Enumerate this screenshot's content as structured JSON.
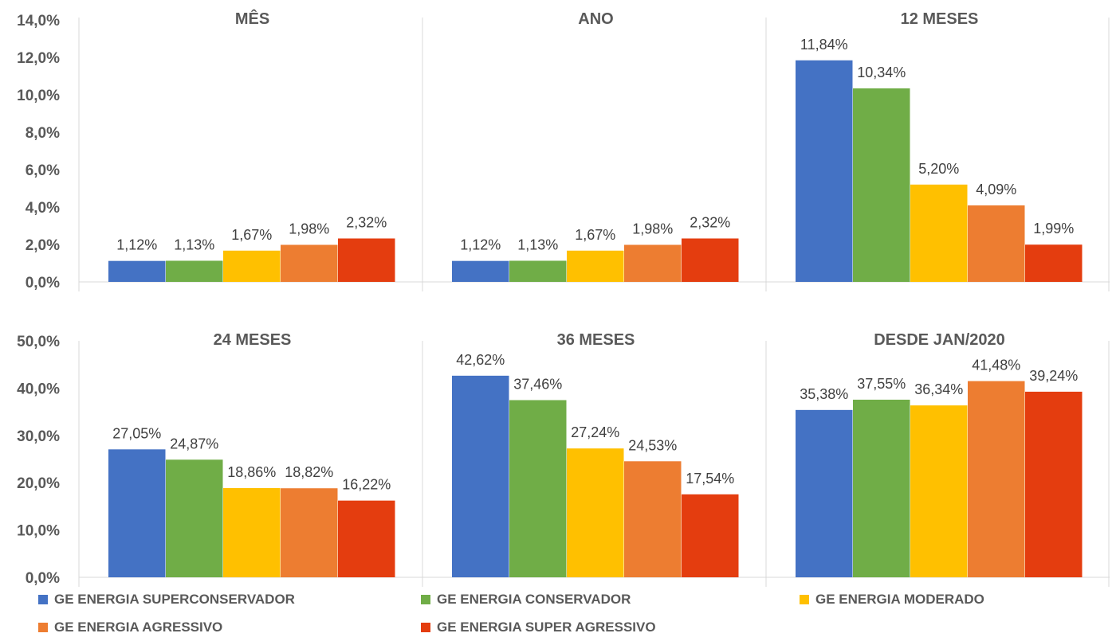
{
  "colors": {
    "superconservador": "#4472C4",
    "conservador": "#70AD47",
    "moderado": "#FFC000",
    "agressivo": "#ED7D31",
    "super_agressivo": "#E43D0F",
    "axis_text": "#595959",
    "separator": "#D9D9D9",
    "value_text": "#404040"
  },
  "legend": [
    {
      "label": "GE ENERGIA SUPERCONSERVADOR",
      "color_key": "superconservador"
    },
    {
      "label": "GE ENERGIA CONSERVADOR",
      "color_key": "conservador"
    },
    {
      "label": "GE ENERGIA MODERADO",
      "color_key": "moderado"
    },
    {
      "label": "GE ENERGIA AGRESSIVO",
      "color_key": "agressivo"
    },
    {
      "label": "GE ENERGIA SUPER AGRESSIVO",
      "color_key": "super_agressivo"
    }
  ],
  "chart_data": [
    {
      "type": "bar",
      "ylim": [
        0,
        14
      ],
      "yticks": [
        0,
        2,
        4,
        6,
        8,
        10,
        12,
        14
      ],
      "ytick_labels": [
        "0,0%",
        "2,0%",
        "4,0%",
        "6,0%",
        "8,0%",
        "10,0%",
        "12,0%",
        "14,0%"
      ],
      "grid": false,
      "legend_position": "bottom",
      "series_names": [
        "GE ENERGIA SUPERCONSERVADOR",
        "GE ENERGIA CONSERVADOR",
        "GE ENERGIA MODERADO",
        "GE ENERGIA AGRESSIVO",
        "GE ENERGIA SUPER AGRESSIVO"
      ],
      "panels": [
        {
          "title": "MÊS",
          "values": [
            1.12,
            1.13,
            1.67,
            1.98,
            2.32
          ],
          "labels": [
            "1,12%",
            "1,13%",
            "1,67%",
            "1,98%",
            "2,32%"
          ]
        },
        {
          "title": "ANO",
          "values": [
            1.12,
            1.13,
            1.67,
            1.98,
            2.32
          ],
          "labels": [
            "1,12%",
            "1,13%",
            "1,67%",
            "1,98%",
            "2,32%"
          ]
        },
        {
          "title": "12 MESES",
          "values": [
            11.84,
            10.34,
            5.2,
            4.09,
            1.99
          ],
          "labels": [
            "11,84%",
            "10,34%",
            "5,20%",
            "4,09%",
            "1,99%"
          ]
        }
      ]
    },
    {
      "type": "bar",
      "ylim": [
        0,
        50
      ],
      "yticks": [
        0,
        10,
        20,
        30,
        40,
        50
      ],
      "ytick_labels": [
        "0,0%",
        "10,0%",
        "20,0%",
        "30,0%",
        "40,0%",
        "50,0%"
      ],
      "grid": false,
      "legend_position": "bottom",
      "series_names": [
        "GE ENERGIA SUPERCONSERVADOR",
        "GE ENERGIA CONSERVADOR",
        "GE ENERGIA MODERADO",
        "GE ENERGIA AGRESSIVO",
        "GE ENERGIA SUPER AGRESSIVO"
      ],
      "panels": [
        {
          "title": "24 MESES",
          "values": [
            27.05,
            24.87,
            18.86,
            18.82,
            16.22
          ],
          "labels": [
            "27,05%",
            "24,87%",
            "18,86%",
            "18,82%",
            "16,22%"
          ]
        },
        {
          "title": "36 MESES",
          "values": [
            42.62,
            37.46,
            27.24,
            24.53,
            17.54
          ],
          "labels": [
            "42,62%",
            "37,46%",
            "27,24%",
            "24,53%",
            "17,54%"
          ]
        },
        {
          "title": "DESDE JAN/2020",
          "values": [
            35.38,
            37.55,
            36.34,
            41.48,
            39.24
          ],
          "labels": [
            "35,38%",
            "37,55%",
            "36,34%",
            "41,48%",
            "39,24%"
          ]
        }
      ]
    }
  ]
}
